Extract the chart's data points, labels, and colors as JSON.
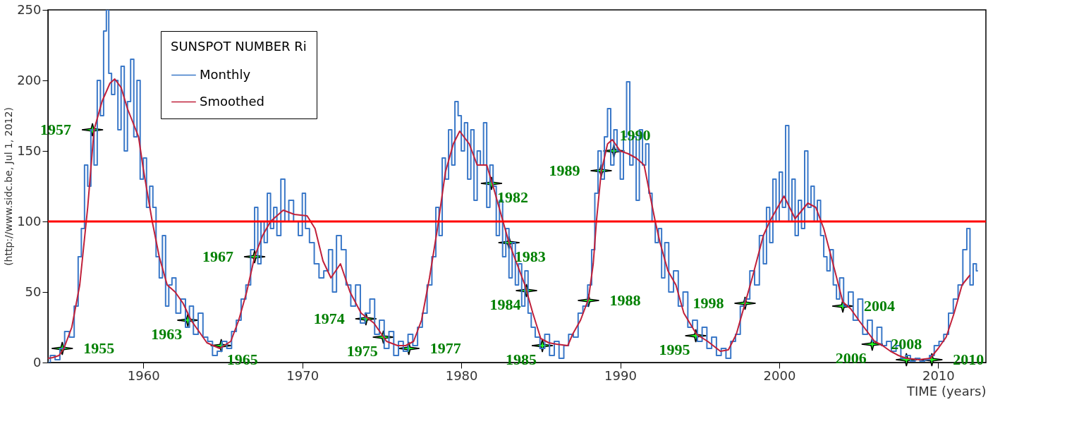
{
  "chart_data": {
    "type": "line",
    "xlabel": "TIME (years)",
    "ylabel": "(http://www.sidc.be, Jul 1, 2012)",
    "legend_title": "SUNSPOT NUMBER Ri",
    "legend": "top left",
    "grid": false,
    "xlim": [
      1954,
      2013
    ],
    "xticks": [
      1960,
      1970,
      1980,
      1990,
      2000,
      2010
    ],
    "ylim": [
      0,
      250
    ],
    "yticks": [
      0,
      50,
      100,
      150,
      200,
      250
    ],
    "series": [
      {
        "name": "Monthly",
        "type": "step",
        "color": "#3a78c8",
        "x": [
          1954.0,
          1954.3,
          1954.6,
          1954.9,
          1955.2,
          1955.5,
          1955.8,
          1956.0,
          1956.2,
          1956.4,
          1956.6,
          1956.8,
          1957.0,
          1957.2,
          1957.4,
          1957.6,
          1957.75,
          1957.9,
          1958.1,
          1958.3,
          1958.5,
          1958.7,
          1958.9,
          1959.1,
          1959.3,
          1959.5,
          1959.7,
          1959.9,
          1960.1,
          1960.3,
          1960.5,
          1960.7,
          1960.9,
          1961.1,
          1961.3,
          1961.5,
          1961.7,
          1961.9,
          1962.2,
          1962.5,
          1962.8,
          1963.0,
          1963.3,
          1963.6,
          1963.9,
          1964.2,
          1964.5,
          1964.8,
          1965.1,
          1965.4,
          1965.7,
          1966.0,
          1966.3,
          1966.6,
          1966.9,
          1967.1,
          1967.3,
          1967.5,
          1967.7,
          1967.9,
          1968.1,
          1968.3,
          1968.5,
          1968.8,
          1969.0,
          1969.3,
          1969.6,
          1969.9,
          1970.1,
          1970.3,
          1970.6,
          1970.9,
          1971.2,
          1971.5,
          1971.8,
          1972.0,
          1972.3,
          1972.6,
          1972.9,
          1973.2,
          1973.5,
          1973.8,
          1974.1,
          1974.4,
          1974.7,
          1975.0,
          1975.3,
          1975.6,
          1975.9,
          1976.2,
          1976.5,
          1976.8,
          1977.1,
          1977.4,
          1977.7,
          1978.0,
          1978.3,
          1978.5,
          1978.7,
          1978.9,
          1979.1,
          1979.3,
          1979.5,
          1979.7,
          1979.9,
          1980.1,
          1980.3,
          1980.5,
          1980.7,
          1980.9,
          1981.1,
          1981.3,
          1981.5,
          1981.7,
          1981.9,
          1982.1,
          1982.3,
          1982.5,
          1982.7,
          1982.9,
          1983.1,
          1983.3,
          1983.5,
          1983.7,
          1983.9,
          1984.1,
          1984.3,
          1984.5,
          1984.8,
          1985.1,
          1985.4,
          1985.7,
          1986.0,
          1986.3,
          1986.6,
          1986.9,
          1987.2,
          1987.5,
          1987.8,
          1988.1,
          1988.3,
          1988.5,
          1988.7,
          1988.9,
          1989.1,
          1989.3,
          1989.5,
          1989.7,
          1989.9,
          1990.1,
          1990.3,
          1990.5,
          1990.7,
          1990.9,
          1991.1,
          1991.3,
          1991.5,
          1991.7,
          1991.9,
          1992.1,
          1992.3,
          1992.5,
          1992.7,
          1992.9,
          1993.2,
          1993.5,
          1993.8,
          1994.1,
          1994.4,
          1994.7,
          1995.0,
          1995.3,
          1995.6,
          1995.9,
          1996.2,
          1996.5,
          1996.8,
          1997.1,
          1997.4,
          1997.7,
          1998.0,
          1998.3,
          1998.6,
          1998.9,
          1999.1,
          1999.3,
          1999.5,
          1999.7,
          1999.9,
          2000.1,
          2000.3,
          2000.5,
          2000.7,
          2000.9,
          2001.1,
          2001.3,
          2001.5,
          2001.7,
          2001.9,
          2002.1,
          2002.3,
          2002.5,
          2002.7,
          2002.9,
          2003.1,
          2003.3,
          2003.5,
          2003.7,
          2003.9,
          2004.2,
          2004.5,
          2004.8,
          2005.1,
          2005.4,
          2005.7,
          2006.0,
          2006.3,
          2006.6,
          2006.9,
          2007.2,
          2007.5,
          2007.8,
          2008.1,
          2008.4,
          2008.7,
          2009.0,
          2009.3,
          2009.6,
          2009.9,
          2010.2,
          2010.5,
          2010.8,
          2011.1,
          2011.4,
          2011.7,
          2011.9,
          2012.1,
          2012.3,
          2012.5
        ],
        "values": [
          0,
          5,
          2,
          10,
          22,
          18,
          40,
          75,
          95,
          140,
          125,
          165,
          140,
          200,
          175,
          235,
          250,
          205,
          190,
          200,
          165,
          210,
          150,
          185,
          215,
          160,
          200,
          130,
          145,
          110,
          125,
          110,
          75,
          60,
          90,
          40,
          55,
          60,
          35,
          45,
          25,
          40,
          20,
          35,
          18,
          15,
          5,
          8,
          15,
          10,
          22,
          30,
          45,
          55,
          80,
          110,
          70,
          100,
          85,
          120,
          95,
          110,
          90,
          130,
          100,
          115,
          100,
          90,
          120,
          95,
          85,
          70,
          60,
          65,
          80,
          50,
          90,
          80,
          55,
          40,
          55,
          28,
          35,
          45,
          20,
          30,
          10,
          22,
          5,
          15,
          8,
          20,
          12,
          25,
          35,
          55,
          75,
          110,
          90,
          145,
          130,
          165,
          140,
          185,
          175,
          150,
          170,
          130,
          165,
          115,
          150,
          140,
          170,
          110,
          140,
          125,
          90,
          115,
          75,
          95,
          60,
          85,
          55,
          70,
          40,
          65,
          35,
          25,
          18,
          10,
          20,
          5,
          15,
          3,
          12,
          20,
          18,
          35,
          40,
          55,
          80,
          120,
          150,
          130,
          160,
          180,
          140,
          165,
          150,
          130,
          160,
          199,
          140,
          160,
          115,
          165,
          140,
          155,
          120,
          100,
          85,
          95,
          60,
          85,
          50,
          65,
          40,
          50,
          25,
          30,
          15,
          25,
          10,
          18,
          5,
          10,
          3,
          15,
          20,
          40,
          45,
          65,
          55,
          90,
          70,
          110,
          85,
          130,
          100,
          135,
          110,
          168,
          100,
          130,
          90,
          115,
          95,
          150,
          110,
          125,
          100,
          115,
          90,
          75,
          65,
          80,
          55,
          45,
          60,
          40,
          50,
          30,
          45,
          20,
          30,
          15,
          25,
          12,
          15,
          8,
          12,
          3,
          5,
          1,
          3,
          1,
          2,
          5,
          12,
          15,
          20,
          35,
          45,
          55,
          80,
          95,
          55,
          70,
          65
        ]
      },
      {
        "name": "Smoothed",
        "color": "#c0203a",
        "x": [
          1954.0,
          1954.3,
          1954.7,
          1955.0,
          1955.5,
          1956.0,
          1956.5,
          1956.9,
          1957.4,
          1957.9,
          1958.2,
          1958.6,
          1959.0,
          1959.7,
          1960.0,
          1960.56,
          1961.0,
          1961.5,
          1962.0,
          1962.5,
          1963.0,
          1963.5,
          1964.0,
          1964.8,
          1965.5,
          1966.0,
          1966.5,
          1967.0,
          1967.5,
          1968.0,
          1968.8,
          1969.5,
          1970.3,
          1970.8,
          1971.3,
          1971.8,
          1972.4,
          1973.0,
          1973.7,
          1974.5,
          1975.3,
          1976.0,
          1976.5,
          1977.0,
          1977.5,
          1978.0,
          1978.5,
          1979.0,
          1979.5,
          1979.9,
          1980.5,
          1981.0,
          1981.6,
          1982.0,
          1982.5,
          1983.0,
          1983.5,
          1984.0,
          1984.5,
          1985.0,
          1985.5,
          1986.0,
          1986.7,
          1987.0,
          1987.5,
          1988.0,
          1988.3,
          1988.5,
          1988.8,
          1989.2,
          1989.5,
          1990.0,
          1990.5,
          1991.0,
          1991.5,
          1992.2,
          1992.5,
          1993.0,
          1993.5,
          1994.0,
          1994.8,
          1995.5,
          1996.3,
          1996.8,
          1997.3,
          1997.8,
          1998.3,
          1999.0,
          1999.4,
          2000.3,
          2001.0,
          2001.8,
          2002.3,
          2002.8,
          2003.5,
          2004.0,
          2004.5,
          2005.0,
          2006.0,
          2006.5,
          2007.0,
          2007.5,
          2008.0,
          2008.8,
          2009.5,
          2010.0,
          2010.5,
          2011.0,
          2011.5,
          2012.0
        ],
        "values": [
          3,
          3.5,
          5,
          10,
          25,
          55,
          110,
          165,
          185,
          198,
          201,
          195,
          180,
          160,
          137,
          100,
          75,
          55,
          50,
          42,
          30,
          22,
          14,
          10,
          15,
          30,
          50,
          75,
          90,
          100,
          108,
          105,
          104,
          95,
          72,
          60,
          70,
          50,
          35,
          28,
          15,
          12,
          12,
          15,
          30,
          60,
          95,
          135,
          155,
          164,
          155,
          140,
          140,
          125,
          105,
          85,
          70,
          55,
          35,
          17,
          14,
          13,
          12,
          20,
          30,
          45,
          70,
          100,
          135,
          155,
          158,
          150,
          148,
          145,
          140,
          100,
          85,
          65,
          55,
          35,
          20,
          15,
          8,
          9,
          20,
          40,
          60,
          90,
          100,
          118,
          102,
          113,
          110,
          95,
          65,
          43,
          38,
          30,
          15,
          12,
          8,
          5,
          3,
          2,
          3,
          10,
          18,
          35,
          55,
          62
        ]
      },
      {
        "type": "scatter",
        "marker": "star",
        "color": "#22ff22",
        "x": [
          1954.9,
          1956.8,
          1962.8,
          1964.9,
          1967.0,
          1974.0,
          1975.1,
          1976.7,
          1981.9,
          1983.0,
          1984.1,
          1985.1,
          1988.0,
          1988.8,
          1989.6,
          1994.75,
          1997.85,
          2004.0,
          2005.85,
          2008.0,
          2009.6
        ],
        "values": [
          10,
          165,
          30,
          12,
          75,
          31,
          18,
          10,
          127,
          85,
          51,
          12,
          44,
          136,
          150,
          19,
          42,
          40,
          13,
          2,
          2
        ]
      }
    ],
    "ref_lines": [
      {
        "axis": "y",
        "value": 100,
        "color": "#ff0000"
      }
    ],
    "annotations": [
      {
        "text": "1955",
        "x": 1954.9,
        "y": 10
      },
      {
        "text": "1957",
        "x": 1956.8,
        "y": 165
      },
      {
        "text": "1963",
        "x": 1962.8,
        "y": 30
      },
      {
        "text": "1965",
        "x": 1964.9,
        "y": 12
      },
      {
        "text": "1967",
        "x": 1967.0,
        "y": 75
      },
      {
        "text": "1974",
        "x": 1974.0,
        "y": 31
      },
      {
        "text": "1975",
        "x": 1975.1,
        "y": 18
      },
      {
        "text": "1977",
        "x": 1976.7,
        "y": 10
      },
      {
        "text": "1982",
        "x": 1981.9,
        "y": 127
      },
      {
        "text": "1983",
        "x": 1983.0,
        "y": 85
      },
      {
        "text": "1984",
        "x": 1984.1,
        "y": 51
      },
      {
        "text": "1985",
        "x": 1985.1,
        "y": 12
      },
      {
        "text": "1988",
        "x": 1988.0,
        "y": 44
      },
      {
        "text": "1989",
        "x": 1988.8,
        "y": 136
      },
      {
        "text": "1990",
        "x": 1989.6,
        "y": 150
      },
      {
        "text": "1995",
        "x": 1994.75,
        "y": 19
      },
      {
        "text": "1998",
        "x": 1997.85,
        "y": 42
      },
      {
        "text": "2004",
        "x": 2004.0,
        "y": 40
      },
      {
        "text": "2006",
        "x": 2005.85,
        "y": 13
      },
      {
        "text": "2008",
        "x": 2008.0,
        "y": 2
      },
      {
        "text": "2010",
        "x": 2009.6,
        "y": 2
      }
    ]
  }
}
